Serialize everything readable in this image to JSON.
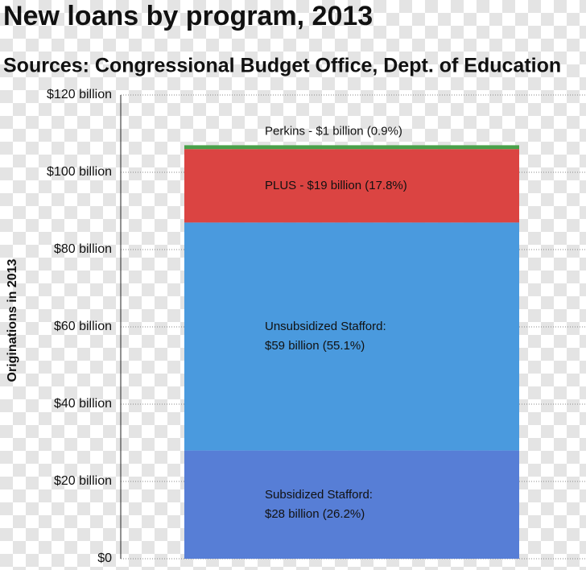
{
  "chart_data": {
    "type": "stacked-bar",
    "title": "New loans by program, 2013",
    "subtitle": "Sources: Congressional Budget Office, Dept. of Education",
    "y_label": "Originations in 2013",
    "categories": [
      null
    ],
    "series": [
      {
        "color": "#577ed6",
        "values": [
          28
        ],
        "value_labels": [
          [
            "Subsidized Stafford:",
            "$28 billion (26.2%)"
          ]
        ]
      },
      {
        "color": "#4a9ade",
        "values": [
          59
        ],
        "value_labels": [
          [
            "Unsubsidized Stafford:",
            "$59 billion (55.1%)"
          ]
        ]
      },
      {
        "color": "#db4442",
        "values": [
          19
        ],
        "value_labels": [
          [
            "PLUS - $19 billion (17.8%)"
          ]
        ]
      },
      {
        "color": "#4aa04a",
        "values": [
          1
        ],
        "value_labels": [
          [
            "Perkins - $1 billion (0.9%)"
          ]
        ]
      }
    ],
    "ylim": [
      0,
      120
    ],
    "yticks": [
      {
        "value": 0,
        "label": "$0"
      },
      {
        "value": 20,
        "label": "$20 billion"
      },
      {
        "value": 40,
        "label": "$40 billion"
      },
      {
        "value": 60,
        "label": "$60 billion"
      },
      {
        "value": 80,
        "label": "$80 billion"
      },
      {
        "value": 100,
        "label": "$100 billion"
      },
      {
        "value": 120,
        "label": "$120 billion"
      }
    ],
    "grid": true
  }
}
